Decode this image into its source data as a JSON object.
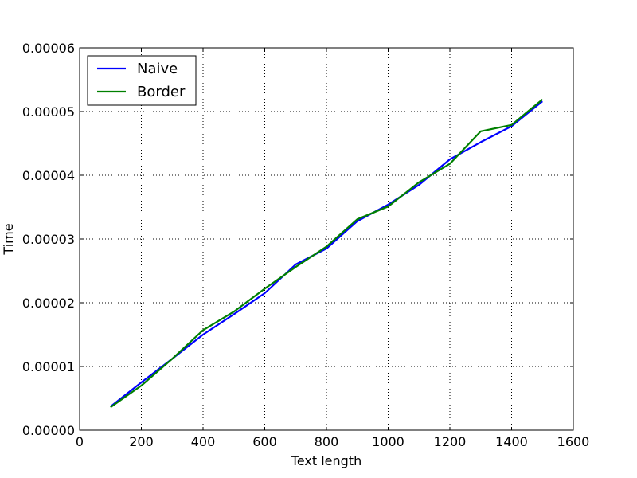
{
  "chart_data": {
    "type": "line",
    "title": "",
    "xlabel": "Text length",
    "ylabel": "Time",
    "xlim": [
      0,
      1600
    ],
    "ylim": [
      0,
      6e-05
    ],
    "grid": true,
    "legend_position": "top-left",
    "x_ticks": [
      "0",
      "200",
      "400",
      "600",
      "800",
      "1000",
      "1200",
      "1400",
      "1600"
    ],
    "y_ticks": [
      "0.00000",
      "0.00001",
      "0.00002",
      "0.00003",
      "0.00004",
      "0.00005",
      "0.00006"
    ],
    "x": [
      100,
      200,
      300,
      400,
      500,
      600,
      700,
      800,
      900,
      1000,
      1100,
      1200,
      1300,
      1400,
      1500
    ],
    "series": [
      {
        "name": "Naive",
        "color": "#0000ff",
        "values": [
          3.7e-06,
          7.5e-06,
          1.12e-05,
          1.5e-05,
          1.82e-05,
          2.15e-05,
          2.6e-05,
          2.85e-05,
          3.28e-05,
          3.54e-05,
          3.85e-05,
          4.25e-05,
          4.52e-05,
          4.77e-05,
          5.16e-05
        ]
      },
      {
        "name": "Border",
        "color": "#008000",
        "values": [
          3.6e-06,
          7e-06,
          1.12e-05,
          1.57e-05,
          1.86e-05,
          2.22e-05,
          2.56e-05,
          2.88e-05,
          3.31e-05,
          3.51e-05,
          3.89e-05,
          4.18e-05,
          4.69e-05,
          4.79e-05,
          5.19e-05
        ]
      }
    ]
  }
}
